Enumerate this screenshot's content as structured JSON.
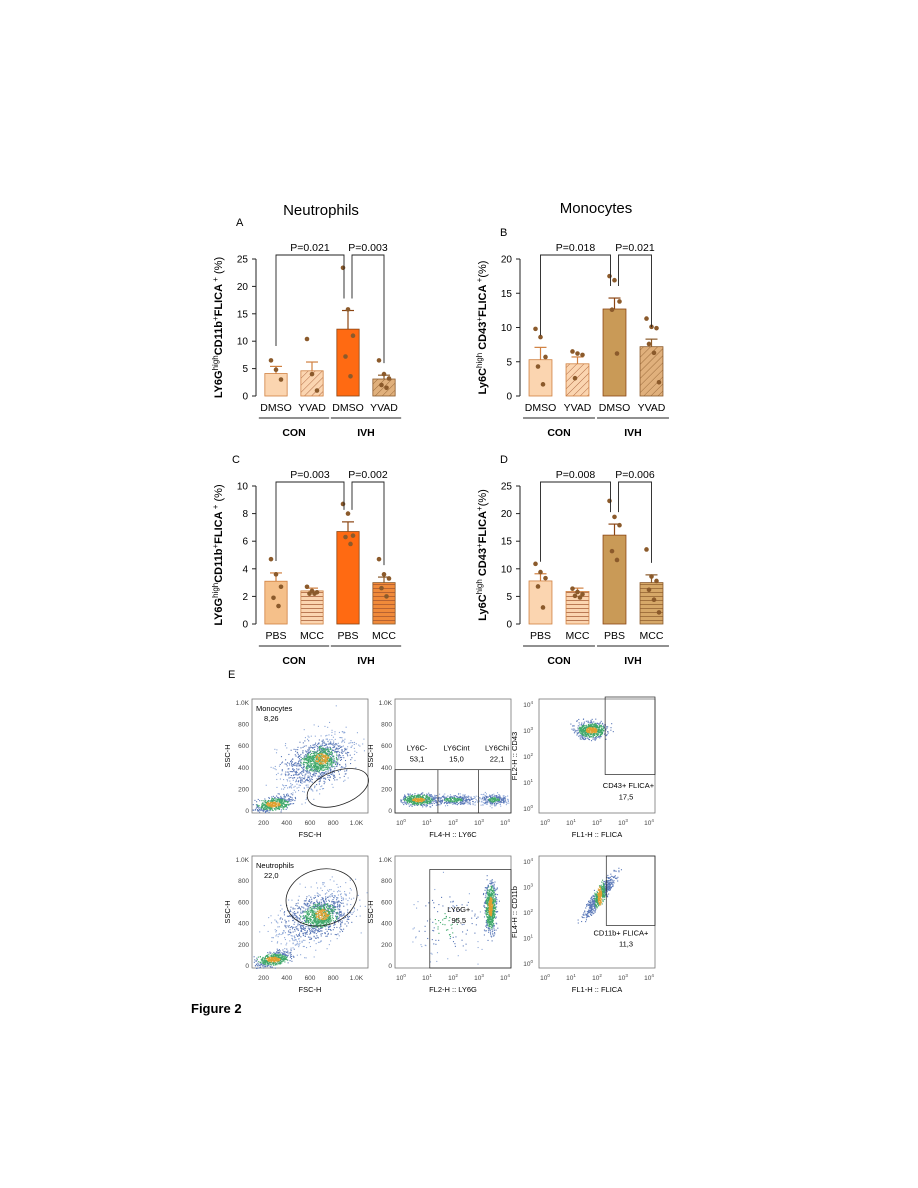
{
  "figure_label": "Figure 2",
  "column_titles": [
    "Neutrophils",
    "Monocytes"
  ],
  "colors": {
    "con_light": "#fbd5b0",
    "ivh_orange": "#ff6a12",
    "ivh_tan": "#c99a57",
    "dot_brown": "#8b5a2b",
    "stroke_brown": "#8b5a2b"
  },
  "chart_data": [
    {
      "panel": "A",
      "type": "bar",
      "ylabel_parts": [
        "LY6G",
        "high",
        "CD11b",
        "+",
        "FLICA",
        " +",
        " (%)"
      ],
      "ylim": [
        0,
        25
      ],
      "yticks": [
        0,
        5,
        10,
        15,
        20,
        25
      ],
      "categories": [
        "DMSO",
        "YVAD",
        "DMSO",
        "YVAD"
      ],
      "groups": [
        "CON",
        "IVH"
      ],
      "values": [
        4.1,
        4.6,
        12.2,
        3.1
      ],
      "errors": [
        1.3,
        1.6,
        3.4,
        0.7
      ],
      "points": [
        [
          6.5,
          4.8,
          3.0
        ],
        [
          10.4,
          4.0,
          1.0
        ],
        [
          23.4,
          15.8,
          11.0,
          7.2,
          3.6
        ],
        [
          6.5,
          4.0,
          3.2,
          2.0,
          1.5
        ]
      ],
      "comparisons": [
        {
          "from": 0,
          "to": 2,
          "label": "P=0.021"
        },
        {
          "from": 2,
          "to": 3,
          "label": "P=0.003"
        }
      ]
    },
    {
      "panel": "B",
      "type": "bar",
      "ylabel_parts": [
        "Ly6C",
        "high",
        " CD43",
        "+",
        "FLICA",
        " +",
        "(%)"
      ],
      "ylim": [
        0,
        20
      ],
      "yticks": [
        0,
        5,
        10,
        15,
        20
      ],
      "categories": [
        "DMSO",
        "YVAD",
        "DMSO",
        "YVAD"
      ],
      "groups": [
        "CON",
        "IVH"
      ],
      "values": [
        5.3,
        4.7,
        12.7,
        7.2
      ],
      "errors": [
        1.8,
        1.0,
        1.6,
        1.1
      ],
      "points": [
        [
          9.8,
          8.6,
          5.7,
          4.3,
          1.7
        ],
        [
          6.5,
          6.2,
          6.0,
          2.6
        ],
        [
          17.5,
          16.9,
          13.8,
          12.6,
          6.2
        ],
        [
          11.3,
          10.1,
          9.9,
          7.6,
          6.3,
          2.0
        ]
      ],
      "comparisons": [
        {
          "from": 0,
          "to": 2,
          "label": "P=0.018"
        },
        {
          "from": 2,
          "to": 3,
          "label": "P=0.021"
        }
      ]
    },
    {
      "panel": "C",
      "type": "bar",
      "ylabel_parts": [
        "LY6G",
        "high",
        "CD11b",
        "+",
        "FLICA",
        " +",
        "  (%)"
      ],
      "ylim": [
        0,
        10
      ],
      "yticks": [
        0,
        2,
        4,
        6,
        8,
        10
      ],
      "categories": [
        "PBS",
        "MCC",
        "PBS",
        "MCC"
      ],
      "groups": [
        "CON",
        "IVH"
      ],
      "values": [
        3.1,
        2.4,
        6.7,
        3.0
      ],
      "errors": [
        0.6,
        0.2,
        0.7,
        0.4
      ],
      "points": [
        [
          4.7,
          3.6,
          2.7,
          1.9,
          1.3
        ],
        [
          2.7,
          2.4,
          2.3,
          2.2,
          2.2
        ],
        [
          8.7,
          8.0,
          6.4,
          6.3,
          5.8
        ],
        [
          4.7,
          3.6,
          3.3,
          2.6,
          2.0
        ]
      ],
      "comparisons": [
        {
          "from": 0,
          "to": 2,
          "label": "P=0.003"
        },
        {
          "from": 2,
          "to": 3,
          "label": "P=0.002"
        }
      ]
    },
    {
      "panel": "D",
      "type": "bar",
      "ylabel_parts": [
        "Ly6C",
        "high",
        " CD43",
        "+",
        "FLICA",
        "+",
        "(%)"
      ],
      "ylim": [
        0,
        25
      ],
      "yticks": [
        0,
        5,
        10,
        15,
        20,
        25
      ],
      "categories": [
        "PBS",
        "MCC",
        "PBS",
        "MCC"
      ],
      "groups": [
        "CON",
        "IVH"
      ],
      "values": [
        7.8,
        5.9,
        16.1,
        7.5
      ],
      "errors": [
        1.3,
        0.6,
        2.0,
        1.4
      ],
      "points": [
        [
          10.9,
          9.4,
          8.3,
          6.8,
          3.0
        ],
        [
          6.4,
          5.8,
          5.4,
          5.1,
          4.8
        ],
        [
          22.3,
          19.4,
          17.9,
          13.2,
          11.6
        ],
        [
          13.5,
          8.6,
          7.8,
          6.2,
          4.4,
          2.1
        ]
      ],
      "comparisons": [
        {
          "from": 0,
          "to": 2,
          "label": "P=0.008"
        },
        {
          "from": 2,
          "to": 3,
          "label": "P=0.006"
        }
      ]
    }
  ],
  "flow_panel": {
    "label": "E",
    "plots": [
      {
        "kind": "scatter-linear",
        "xlabel": "FSC-H",
        "ylabel": "SSC-H",
        "xticks": [
          "200",
          "400",
          "600",
          "800",
          "1.0K"
        ],
        "yticks": [
          "0",
          "200",
          "400",
          "600",
          "800",
          "1.0K"
        ],
        "gate_name": "Monocytes",
        "gate_value": "8,26"
      },
      {
        "kind": "scatter-log",
        "xlabel": "FL4-H :: LY6C",
        "ylabel": "SSC-H",
        "yticks": [
          "0",
          "200",
          "400",
          "600",
          "800",
          "1.0K"
        ],
        "gates": [
          {
            "name": "LY6C-",
            "value": "53,1"
          },
          {
            "name": "LY6Cint",
            "value": "15,0"
          },
          {
            "name": "LY6Chi",
            "value": "22,1"
          }
        ]
      },
      {
        "kind": "scatter-loglog",
        "xlabel": "FL1-H :: FLICA",
        "ylabel": "FL2-H :: CD43",
        "gate_name": "CD43+ FLICA+",
        "gate_value": "17,5"
      },
      {
        "kind": "scatter-linear",
        "xlabel": "FSC-H",
        "ylabel": "SSC-H",
        "xticks": [
          "200",
          "400",
          "600",
          "800",
          "1.0K"
        ],
        "yticks": [
          "0",
          "200",
          "400",
          "600",
          "800",
          "1.0K"
        ],
        "gate_name": "Neutrophils",
        "gate_value": "22,0"
      },
      {
        "kind": "scatter-log",
        "xlabel": "FL2-H :: LY6G",
        "ylabel": "SSC-H",
        "yticks": [
          "0",
          "200",
          "400",
          "600",
          "800",
          "1.0K"
        ],
        "gate_name": "LY6G+",
        "gate_value": "95,5"
      },
      {
        "kind": "scatter-loglog",
        "xlabel": "FL1-H :: FLICA",
        "ylabel": "FL4-H :: CD11b",
        "gate_name": "CD11b+ FLICA+",
        "gate_value": "11,3"
      }
    ]
  }
}
